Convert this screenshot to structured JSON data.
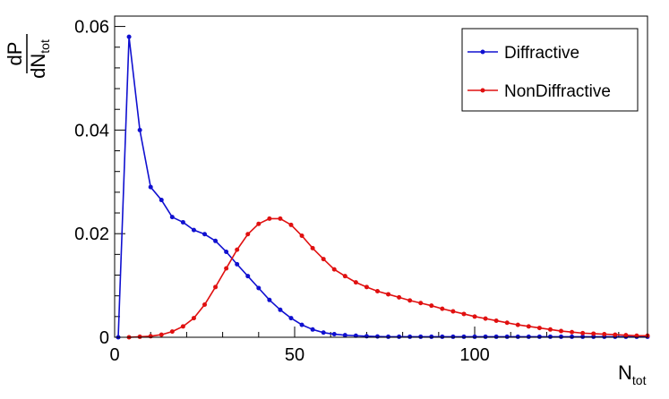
{
  "chart_data": {
    "type": "line",
    "xlabel": {
      "main": "N",
      "sub": "tot"
    },
    "ylabel": {
      "num": "dP",
      "den_main": "dN",
      "den_sub": "tot"
    },
    "xlim": [
      0,
      148
    ],
    "ylim": [
      0,
      0.062
    ],
    "xticks": [
      0,
      50,
      100
    ],
    "xtick_labels": [
      "0",
      "50",
      "100"
    ],
    "yticks": [
      0,
      0.02,
      0.04,
      0.06
    ],
    "ytick_labels": [
      "0",
      "0.02",
      "0.04",
      "0.06"
    ],
    "grid": false,
    "legend_position": "top-right",
    "series": [
      {
        "name": "Diffractive",
        "color": "#1010d0",
        "x": [
          1,
          4,
          7,
          10,
          13,
          16,
          19,
          22,
          25,
          28,
          31,
          34,
          37,
          40,
          43,
          46,
          49,
          52,
          55,
          58,
          61,
          64,
          67,
          70,
          73,
          76,
          79,
          82,
          85,
          88,
          91,
          94,
          97,
          100,
          103,
          106,
          109,
          112,
          115,
          118,
          121,
          124,
          127,
          130,
          133,
          136,
          139,
          142,
          145,
          148
        ],
        "y": [
          0.0,
          0.058,
          0.04,
          0.029,
          0.0265,
          0.0232,
          0.0222,
          0.0207,
          0.0199,
          0.0186,
          0.0165,
          0.0141,
          0.0118,
          0.0095,
          0.0072,
          0.0053,
          0.0037,
          0.0024,
          0.0015,
          0.0009,
          0.0006,
          0.0004,
          0.0003,
          0.0002,
          0.00015,
          0.0001,
          0.0001,
          0.0001,
          0.0001,
          0.0001,
          0.0001,
          0.0001,
          0.0001,
          0.0001,
          0.0001,
          0.0001,
          0.0001,
          0.0001,
          0.0001,
          0.0001,
          0.0001,
          0.0001,
          0.0001,
          0.0001,
          0.0001,
          0.0001,
          0.0001,
          0.0001,
          0.0001,
          0.0001
        ]
      },
      {
        "name": "NonDiffractive",
        "color": "#e01010",
        "x": [
          4,
          7,
          10,
          13,
          16,
          19,
          22,
          25,
          28,
          31,
          34,
          37,
          40,
          43,
          46,
          49,
          52,
          55,
          58,
          61,
          64,
          67,
          70,
          73,
          76,
          79,
          82,
          85,
          88,
          91,
          94,
          97,
          100,
          103,
          106,
          109,
          112,
          115,
          118,
          121,
          124,
          127,
          130,
          133,
          136,
          139,
          142,
          145,
          148
        ],
        "y": [
          0.0,
          0.0001,
          0.0002,
          0.0005,
          0.0011,
          0.0021,
          0.0037,
          0.0063,
          0.0097,
          0.0133,
          0.0169,
          0.0199,
          0.0219,
          0.0229,
          0.0229,
          0.0217,
          0.0196,
          0.0172,
          0.0151,
          0.0131,
          0.0118,
          0.0106,
          0.0097,
          0.0089,
          0.0083,
          0.0077,
          0.0071,
          0.0066,
          0.0061,
          0.0055,
          0.005,
          0.0045,
          0.004,
          0.0036,
          0.0032,
          0.0028,
          0.0024,
          0.0021,
          0.0018,
          0.0015,
          0.0012,
          0.001,
          0.0008,
          0.0007,
          0.0006,
          0.0005,
          0.0004,
          0.0003,
          0.0003
        ]
      }
    ]
  }
}
